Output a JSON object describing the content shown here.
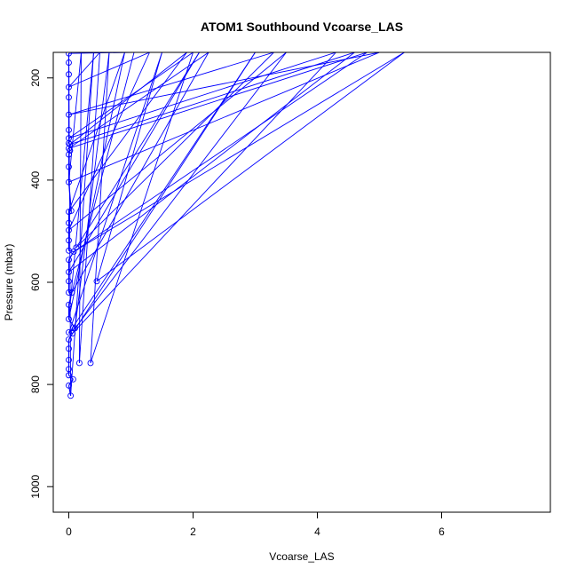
{
  "chart_data": {
    "type": "scatter",
    "title": "ATOM1 Southbound Vcoarse_LAS",
    "xlabel": "Vcoarse_LAS",
    "ylabel": "Pressure (mbar)",
    "xlim": [
      -0.25,
      7.75
    ],
    "ylim": [
      1050,
      150
    ],
    "y_reversed": true,
    "x_ticks": [
      0,
      2,
      4,
      6
    ],
    "y_ticks": [
      200,
      400,
      600,
      800,
      1000
    ],
    "grid": false,
    "legend": "none",
    "series_color": "#0000ff",
    "points": [
      {
        "x": 0.0,
        "y": 152
      },
      {
        "x": 0.0,
        "y": 170
      },
      {
        "x": 0.0,
        "y": 193
      },
      {
        "x": 0.0,
        "y": 218
      },
      {
        "x": 0.0,
        "y": 238
      },
      {
        "x": 0.0,
        "y": 272
      },
      {
        "x": 0.0,
        "y": 302
      },
      {
        "x": 0.0,
        "y": 318
      },
      {
        "x": 0.0,
        "y": 328
      },
      {
        "x": 0.0,
        "y": 338
      },
      {
        "x": 0.0,
        "y": 350
      },
      {
        "x": 0.0,
        "y": 374
      },
      {
        "x": 0.0,
        "y": 404
      },
      {
        "x": 0.0,
        "y": 462
      },
      {
        "x": 0.0,
        "y": 484
      },
      {
        "x": 0.0,
        "y": 498
      },
      {
        "x": 0.0,
        "y": 518
      },
      {
        "x": 0.0,
        "y": 538
      },
      {
        "x": 0.0,
        "y": 556
      },
      {
        "x": 0.0,
        "y": 580
      },
      {
        "x": 0.0,
        "y": 598
      },
      {
        "x": 0.0,
        "y": 620
      },
      {
        "x": 0.0,
        "y": 644
      },
      {
        "x": 0.0,
        "y": 672
      },
      {
        "x": 0.0,
        "y": 698
      },
      {
        "x": 0.0,
        "y": 712
      },
      {
        "x": 0.0,
        "y": 730
      },
      {
        "x": 0.0,
        "y": 752
      },
      {
        "x": 0.0,
        "y": 770
      },
      {
        "x": 0.0,
        "y": 782
      },
      {
        "x": 0.0,
        "y": 802
      },
      {
        "x": 0.03,
        "y": 822
      },
      {
        "x": 0.04,
        "y": 460
      },
      {
        "x": 0.05,
        "y": 620
      },
      {
        "x": 0.06,
        "y": 700
      },
      {
        "x": 0.07,
        "y": 790
      },
      {
        "x": 0.08,
        "y": 540
      },
      {
        "x": 0.1,
        "y": 690
      },
      {
        "x": 0.12,
        "y": 532
      },
      {
        "x": 0.17,
        "y": 758
      },
      {
        "x": 0.35,
        "y": 758
      },
      {
        "x": 0.45,
        "y": 598
      },
      {
        "x": 0.02,
        "y": 330
      },
      {
        "x": 0.02,
        "y": 342
      }
    ],
    "profile_path": [
      {
        "x": 0.0,
        "y": 152
      },
      {
        "x": 1.05,
        "y": 150
      },
      {
        "x": 0.05,
        "y": 620
      },
      {
        "x": 2.25,
        "y": 150
      },
      {
        "x": 0.0,
        "y": 338
      },
      {
        "x": 4.8,
        "y": 150
      },
      {
        "x": 0.08,
        "y": 540
      },
      {
        "x": 5.4,
        "y": 150
      },
      {
        "x": 0.45,
        "y": 598
      },
      {
        "x": 1.5,
        "y": 150
      },
      {
        "x": 0.0,
        "y": 700
      },
      {
        "x": 3.0,
        "y": 150
      },
      {
        "x": 0.06,
        "y": 700
      },
      {
        "x": 4.3,
        "y": 150
      },
      {
        "x": 0.0,
        "y": 318
      },
      {
        "x": 2.0,
        "y": 150
      },
      {
        "x": 0.35,
        "y": 758
      },
      {
        "x": 0.65,
        "y": 150
      },
      {
        "x": 0.1,
        "y": 690
      },
      {
        "x": 3.5,
        "y": 150
      },
      {
        "x": 0.0,
        "y": 498
      },
      {
        "x": 1.3,
        "y": 150
      },
      {
        "x": 0.0,
        "y": 218
      },
      {
        "x": 0.5,
        "y": 150
      },
      {
        "x": 0.17,
        "y": 758
      },
      {
        "x": 0.2,
        "y": 150
      },
      {
        "x": 0.0,
        "y": 404
      },
      {
        "x": 5.0,
        "y": 150
      },
      {
        "x": 0.0,
        "y": 272
      },
      {
        "x": 3.3,
        "y": 150
      },
      {
        "x": 0.12,
        "y": 532
      },
      {
        "x": 2.1,
        "y": 150
      },
      {
        "x": 0.0,
        "y": 580
      },
      {
        "x": 4.6,
        "y": 150
      },
      {
        "x": 0.02,
        "y": 330
      },
      {
        "x": 1.9,
        "y": 150
      },
      {
        "x": 0.0,
        "y": 462
      },
      {
        "x": 0.9,
        "y": 150
      },
      {
        "x": 0.0,
        "y": 672
      },
      {
        "x": 0.4,
        "y": 150
      },
      {
        "x": 0.03,
        "y": 822
      },
      {
        "x": 0.0,
        "y": 152
      }
    ]
  }
}
